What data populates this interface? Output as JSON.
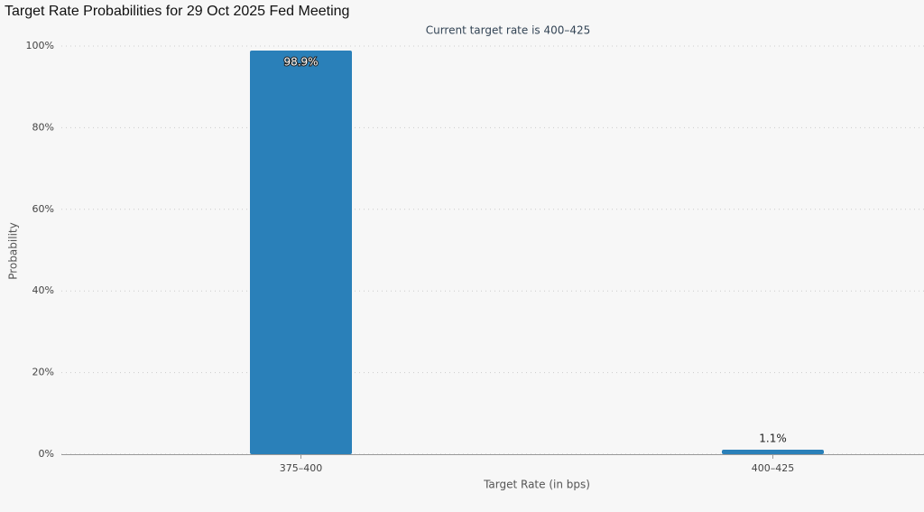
{
  "chart_data": {
    "type": "bar",
    "title": "Target Rate Probabilities for 29 Oct 2025 Fed Meeting",
    "subtitle": "Current target rate is 400–425",
    "x_label": "Target Rate (in bps)",
    "y_label": "Probability",
    "categories": [
      "375–400",
      "400–425"
    ],
    "values": [
      98.9,
      1.1
    ],
    "value_labels": [
      "98.9%",
      "1.1%"
    ],
    "color": "#2a80b9",
    "ylim": [
      0,
      100
    ],
    "yticks": [
      {
        "value": 0,
        "label": "0%"
      },
      {
        "value": 20,
        "label": "20%"
      },
      {
        "value": 40,
        "label": "40%"
      },
      {
        "value": 60,
        "label": "60%"
      },
      {
        "value": 80,
        "label": "80%"
      },
      {
        "value": 100,
        "label": "100%"
      }
    ],
    "grid": true
  }
}
